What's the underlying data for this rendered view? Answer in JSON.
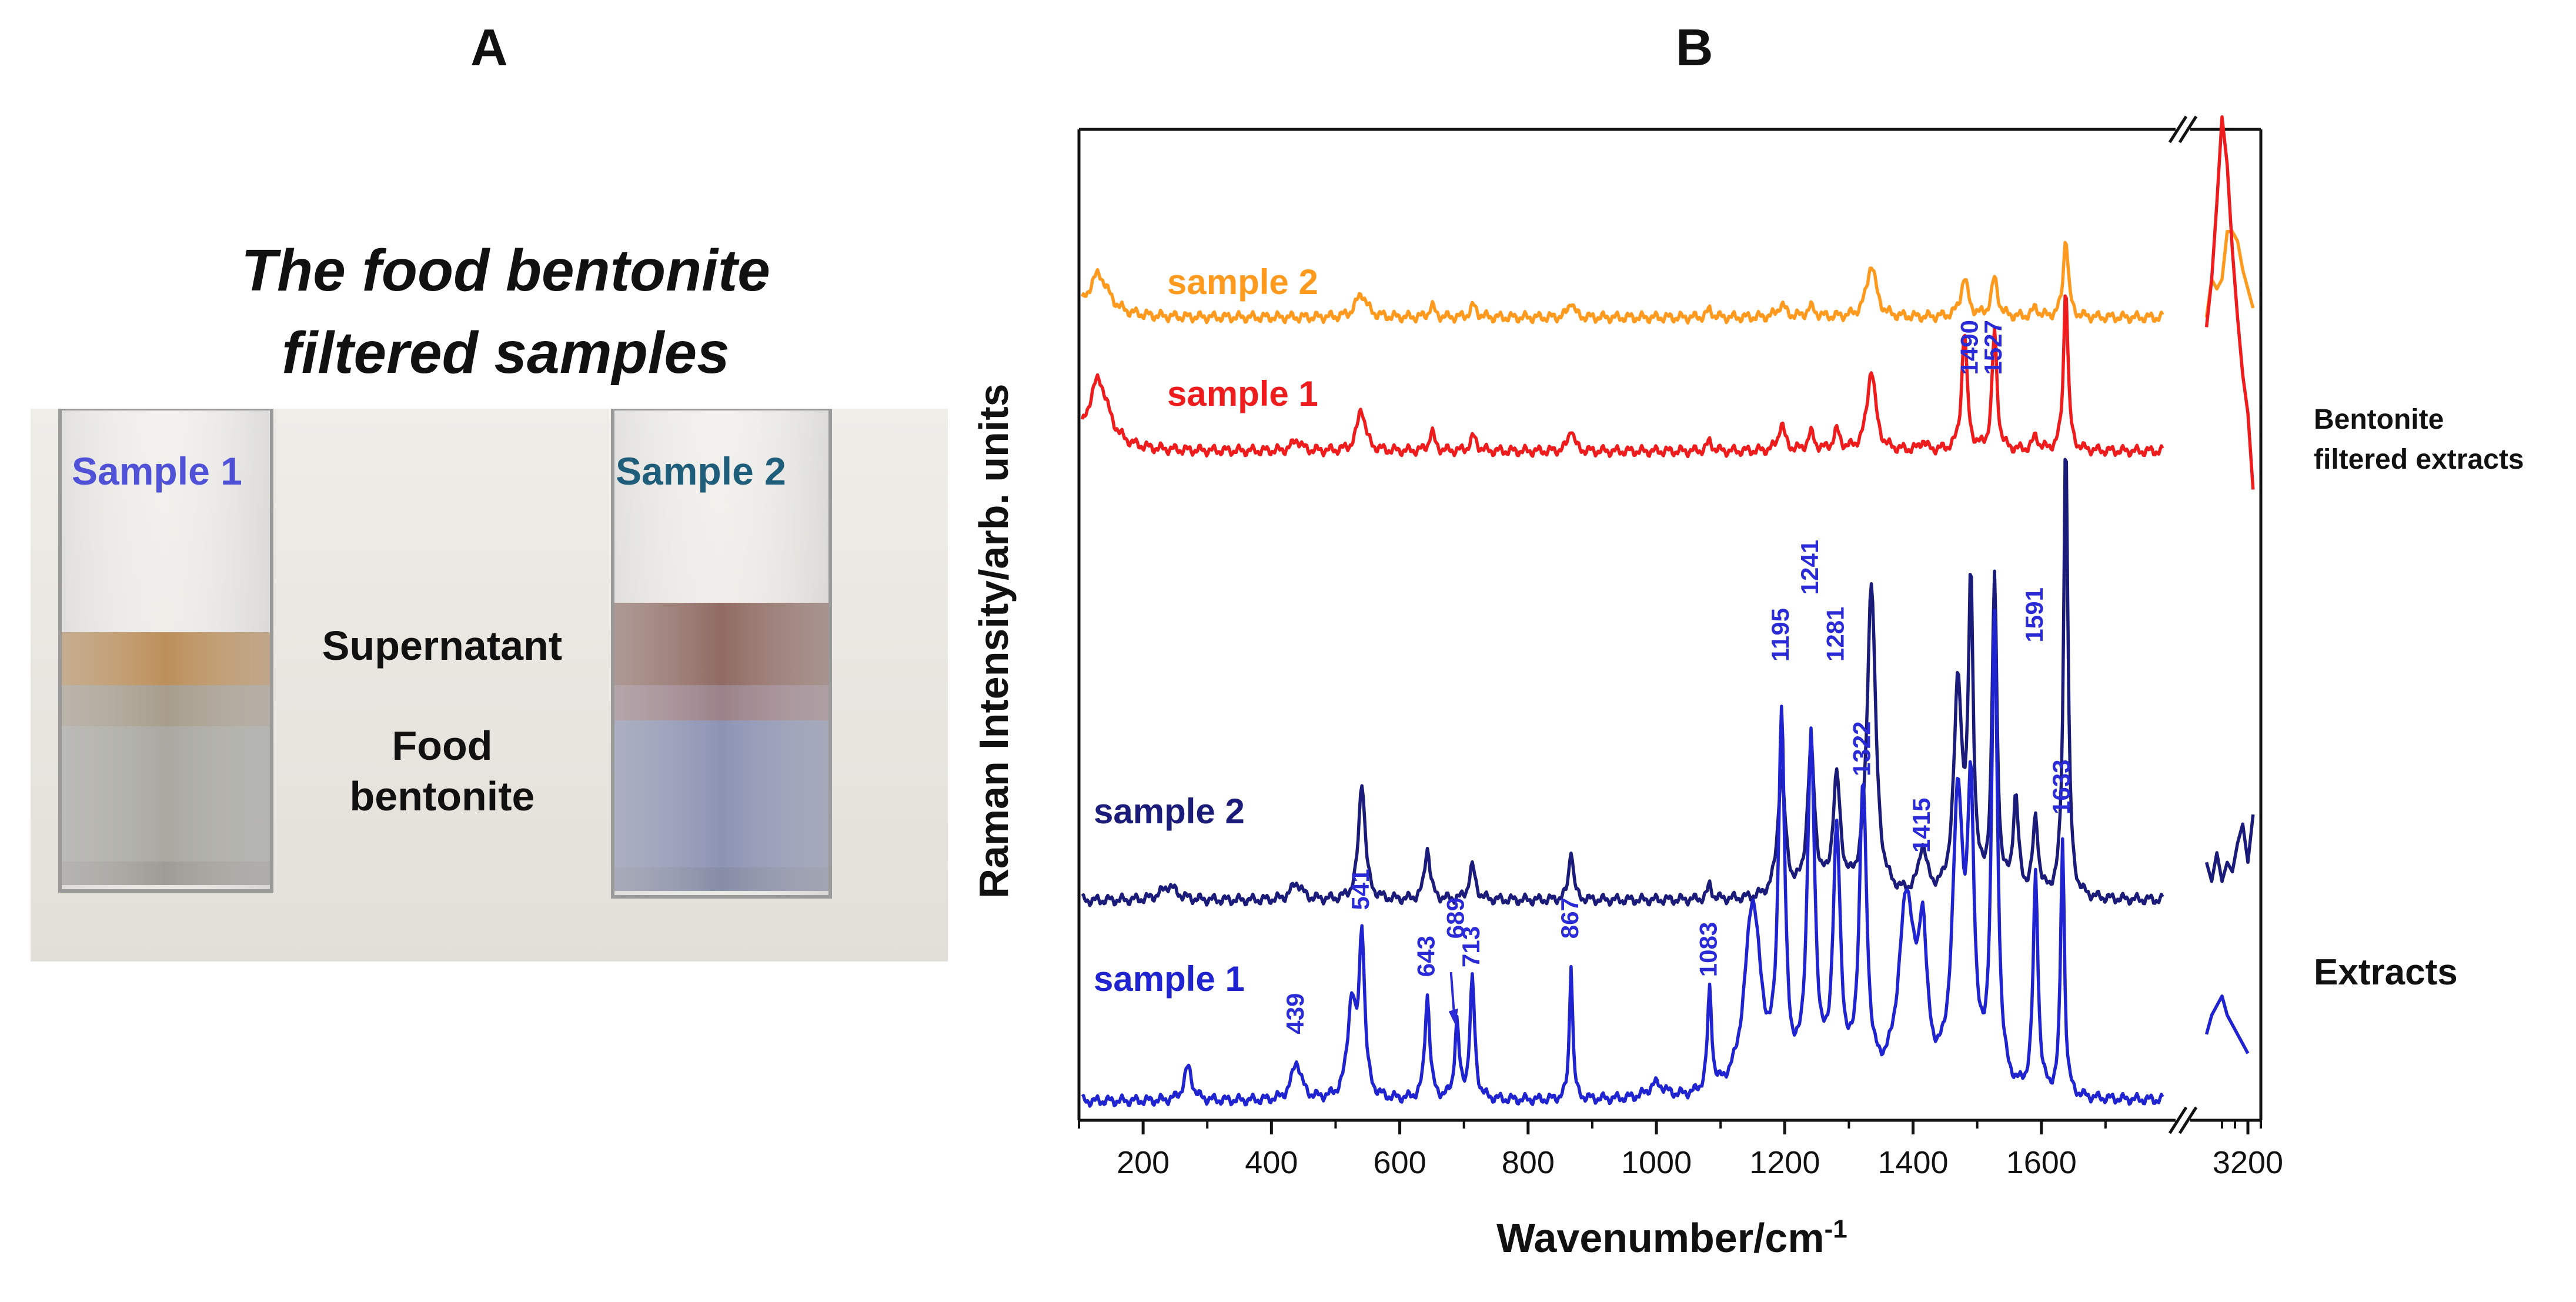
{
  "panel_a": {
    "label": "A",
    "title_line1": "The food bentonite",
    "title_line2": "filtered samples",
    "vial1_label": "Sample 1",
    "vial2_label": "Sample 2",
    "supernatant_label": "Supernatant",
    "bentonite_label_line1": "Food",
    "bentonite_label_line2": "bentonite"
  },
  "panel_b": {
    "label": "B",
    "side_label_filtered_line1": "Bentonite",
    "side_label_filtered_line2": "filtered extracts",
    "side_label_extracts": "Extracts"
  },
  "colors": {
    "filtered_sample2": "#ff9a1f",
    "filtered_sample1": "#ee1c1c",
    "extract_sample2": "#1b1b7a",
    "extract_sample1": "#1f24d0",
    "peak_label": "#2a2ad6"
  },
  "chart_data": {
    "type": "line",
    "title": "",
    "xlabel": "Wavenumber/cm",
    "xlabel_superscript": "-1",
    "ylabel": "Raman Intensity/arb. units",
    "x_range_main": [
      100,
      1800
    ],
    "x_range_break": [
      3000,
      3250
    ],
    "x_ticks": [
      200,
      400,
      600,
      800,
      1000,
      1200,
      1400,
      1600,
      3200
    ],
    "x_tick_labels": [
      "200",
      "400",
      "600",
      "800",
      "1000",
      "1200",
      "1400",
      "1600",
      "3200"
    ],
    "ylim": [
      0,
      100
    ],
    "y_ticks_labeled": false,
    "grid": false,
    "series": [
      {
        "name": "sample 2",
        "group": "Bentonite filtered extracts",
        "color": "#ff9a1f",
        "baseline": 84,
        "peaks": [
          [
            130,
            4.5,
            40
          ],
          [
            540,
            2.5,
            20
          ],
          [
            650,
            1.2,
            10
          ],
          [
            715,
            1.2,
            12
          ],
          [
            867,
            1.8,
            10
          ],
          [
            1083,
            0.8,
            10
          ],
          [
            1195,
            1.3,
            15
          ],
          [
            1241,
            1.0,
            15
          ],
          [
            1335,
            5.5,
            18
          ],
          [
            1480,
            4.0,
            14
          ],
          [
            1527,
            4.0,
            12
          ],
          [
            1591,
            1.0,
            10
          ],
          [
            1638,
            8.5,
            9
          ]
        ],
        "break_points": [
          [
            3040,
            84
          ],
          [
            3060,
            88
          ],
          [
            3080,
            87
          ],
          [
            3100,
            88
          ],
          [
            3120,
            93
          ],
          [
            3140,
            93
          ],
          [
            3160,
            92
          ],
          [
            3180,
            89
          ],
          [
            3200,
            87
          ],
          [
            3220,
            85
          ]
        ]
      },
      {
        "name": "sample 1",
        "group": "Bentonite filtered extracts",
        "color": "#ee1c1c",
        "baseline": 70,
        "peaks": [
          [
            130,
            7.5,
            40
          ],
          [
            439,
            1.2,
            15
          ],
          [
            540,
            4.5,
            15
          ],
          [
            650,
            2.0,
            10
          ],
          [
            715,
            1.5,
            12
          ],
          [
            867,
            2.5,
            10
          ],
          [
            1083,
            1.0,
            10
          ],
          [
            1195,
            2.8,
            12
          ],
          [
            1241,
            1.8,
            12
          ],
          [
            1281,
            2.0,
            12
          ],
          [
            1335,
            8.5,
            16
          ],
          [
            1415,
            1.0,
            10
          ],
          [
            1480,
            12.5,
            10
          ],
          [
            1527,
            12.5,
            9
          ],
          [
            1591,
            1.5,
            10
          ],
          [
            1638,
            17.5,
            8
          ]
        ],
        "break_points": [
          [
            3040,
            83
          ],
          [
            3060,
            88
          ],
          [
            3080,
            96
          ],
          [
            3100,
            105
          ],
          [
            3120,
            100
          ],
          [
            3140,
            91
          ],
          [
            3160,
            84
          ],
          [
            3180,
            78
          ],
          [
            3200,
            74
          ],
          [
            3220,
            66
          ]
        ]
      },
      {
        "name": "sample 2",
        "group": "Extracts",
        "color": "#1b1b7a",
        "baseline": 23,
        "peaks": [
          [
            240,
            1.5,
            30
          ],
          [
            439,
            1.8,
            20
          ],
          [
            541,
            12.5,
            12
          ],
          [
            643,
            5.5,
            10
          ],
          [
            713,
            3.5,
            12
          ],
          [
            867,
            5.5,
            8
          ],
          [
            1083,
            1.5,
            8
          ],
          [
            1195,
            13,
            14
          ],
          [
            1241,
            15,
            14
          ],
          [
            1281,
            12,
            14
          ],
          [
            1335,
            33,
            16
          ],
          [
            1415,
            5,
            15
          ],
          [
            1470,
            22,
            15
          ],
          [
            1490,
            32,
            9
          ],
          [
            1527,
            33,
            9
          ],
          [
            1560,
            10,
            10
          ],
          [
            1591,
            8,
            10
          ],
          [
            1638,
            49,
            8
          ]
        ],
        "break_points": [
          [
            3040,
            27
          ],
          [
            3060,
            25
          ],
          [
            3080,
            28
          ],
          [
            3100,
            25
          ],
          [
            3120,
            27
          ],
          [
            3140,
            26
          ],
          [
            3160,
            29
          ],
          [
            3180,
            31
          ],
          [
            3200,
            27
          ],
          [
            3220,
            32
          ]
        ]
      },
      {
        "name": "sample 1",
        "group": "Extracts",
        "color": "#1f24d0",
        "baseline": 2,
        "peaks": [
          [
            270,
            3.5,
            15
          ],
          [
            439,
            4,
            18
          ],
          [
            525,
            10,
            15
          ],
          [
            541,
            17,
            10
          ],
          [
            643,
            11,
            9
          ],
          [
            689,
            8,
            8
          ],
          [
            713,
            12.5,
            9
          ],
          [
            867,
            14.5,
            6
          ],
          [
            1000,
            1.5,
            30
          ],
          [
            1083,
            10.5,
            8
          ],
          [
            1150,
            20,
            30
          ],
          [
            1195,
            38,
            12
          ],
          [
            1241,
            36,
            14
          ],
          [
            1281,
            26,
            14
          ],
          [
            1322,
            31,
            14
          ],
          [
            1390,
            20,
            30
          ],
          [
            1415,
            14,
            15
          ],
          [
            1470,
            30,
            20
          ],
          [
            1490,
            28,
            12
          ],
          [
            1527,
            49,
            11
          ],
          [
            1591,
            23,
            9
          ],
          [
            1633,
            27,
            7
          ]
        ],
        "break_points": [
          [
            3040,
            9
          ],
          [
            3060,
            11
          ],
          [
            3080,
            12
          ],
          [
            3100,
            13
          ],
          [
            3120,
            11
          ],
          [
            3140,
            10
          ],
          [
            3160,
            9
          ],
          [
            3180,
            8
          ],
          [
            3200,
            7
          ]
        ]
      }
    ],
    "series_labels": [
      {
        "text": "sample 2",
        "series": 0
      },
      {
        "text": "sample 1",
        "series": 1
      },
      {
        "text": "sample 2",
        "series": 2
      },
      {
        "text": "sample 1",
        "series": 3
      }
    ],
    "annotations": [
      {
        "text": "439",
        "x": 439,
        "y": 9
      },
      {
        "text": "541",
        "x": 541,
        "y": 22
      },
      {
        "text": "643",
        "x": 643,
        "y": 15
      },
      {
        "text": "689",
        "x": 689,
        "y": 19
      },
      {
        "text": "713",
        "x": 713,
        "y": 16
      },
      {
        "text": "867",
        "x": 867,
        "y": 19
      },
      {
        "text": "1083",
        "x": 1083,
        "y": 15
      },
      {
        "text": "1195",
        "x": 1195,
        "y": 48
      },
      {
        "text": "1241",
        "x": 1241,
        "y": 55
      },
      {
        "text": "1281",
        "x": 1281,
        "y": 48
      },
      {
        "text": "1322",
        "x": 1322,
        "y": 36
      },
      {
        "text": "1415",
        "x": 1415,
        "y": 28
      },
      {
        "text": "1490",
        "x": 1490,
        "y": 78
      },
      {
        "text": "1527",
        "x": 1527,
        "y": 78
      },
      {
        "text": "1591",
        "x": 1591,
        "y": 50
      },
      {
        "text": "1633",
        "x": 1633,
        "y": 32
      }
    ]
  }
}
